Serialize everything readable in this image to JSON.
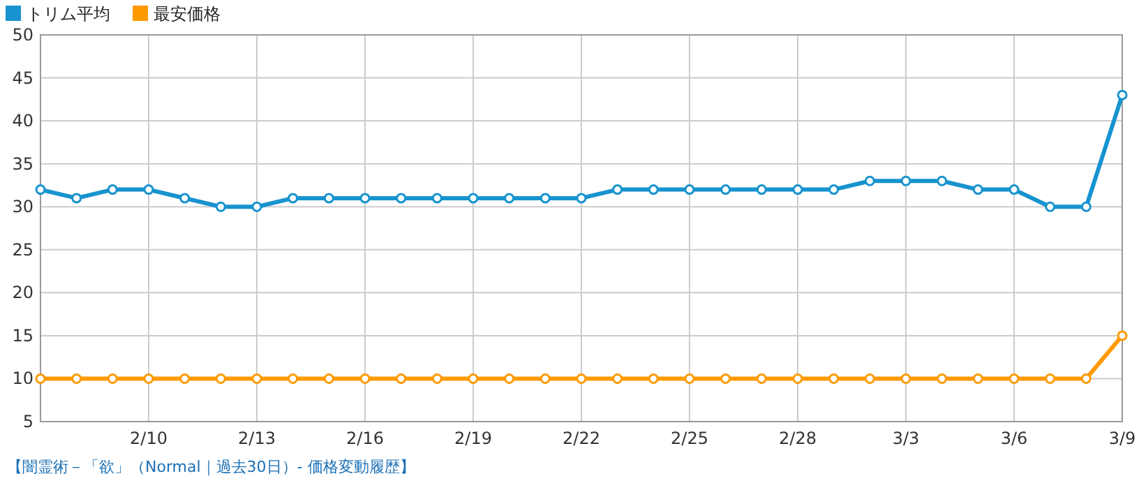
{
  "chart_data": {
    "type": "line",
    "categories": [
      null,
      null,
      null,
      "2/10",
      null,
      null,
      "2/13",
      null,
      null,
      "2/16",
      null,
      null,
      "2/19",
      null,
      null,
      "2/22",
      null,
      null,
      "2/25",
      null,
      null,
      "2/28",
      null,
      null,
      "3/3",
      null,
      null,
      "3/6",
      null,
      null,
      "3/9"
    ],
    "series": [
      {
        "name": "トリム平均",
        "color": "#1793cf",
        "values": [
          32,
          31,
          32,
          32,
          31,
          30,
          30,
          31,
          31,
          31,
          31,
          31,
          31,
          31,
          31,
          31,
          32,
          32,
          32,
          32,
          32,
          32,
          32,
          33,
          33,
          33,
          32,
          32,
          30,
          30,
          43
        ]
      },
      {
        "name": "最安価格",
        "color": "#ff9a00",
        "values": [
          10,
          10,
          10,
          10,
          10,
          10,
          10,
          10,
          10,
          10,
          10,
          10,
          10,
          10,
          10,
          10,
          10,
          10,
          10,
          10,
          10,
          10,
          10,
          10,
          10,
          10,
          10,
          10,
          10,
          10,
          15
        ]
      }
    ],
    "ylim": [
      5,
      50
    ],
    "yticks": [
      5,
      10,
      15,
      20,
      25,
      30,
      35,
      40,
      45,
      50
    ],
    "grid": true,
    "legend": "top left",
    "marker": "circle",
    "line_style": "solid",
    "annotations": [
      "【闇霊術－「欲」（Normal｜過去30日）- 価格変動履歴】"
    ]
  }
}
